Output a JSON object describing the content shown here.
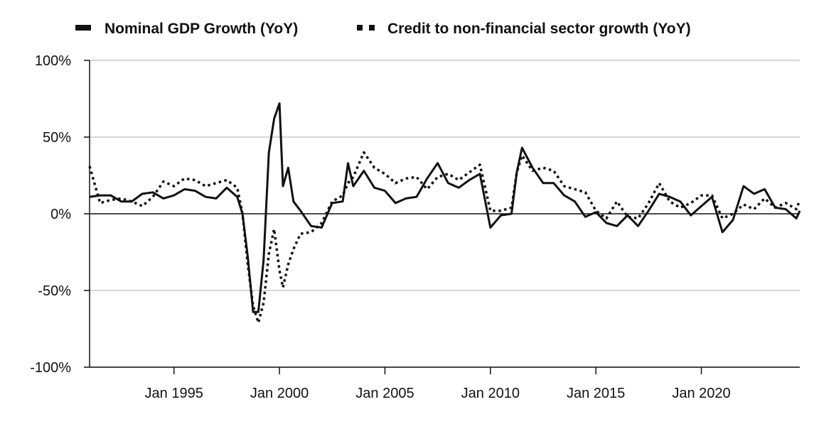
{
  "chart_data": {
    "type": "line",
    "title": "",
    "xlabel": "",
    "ylabel": "",
    "grid": true,
    "legend_position": "top",
    "x_range": [
      "1991-01",
      "2024-09"
    ],
    "ylim": [
      -100,
      100
    ],
    "y_ticks": [
      -100,
      -50,
      0,
      50,
      100
    ],
    "y_tick_labels": [
      "-100%",
      "-50%",
      "0%",
      "50%",
      "100%"
    ],
    "x_ticks": [
      "1995-01",
      "2000-01",
      "2005-01",
      "2010-01",
      "2015-01",
      "2020-01"
    ],
    "x_tick_labels": [
      "Jan 1995",
      "Jan 2000",
      "Jan 2005",
      "Jan 2010",
      "Jan 2015",
      "Jan 2020"
    ],
    "series": [
      {
        "name": "Nominal GDP Growth (YoY)",
        "style": "solid",
        "color": "#111111",
        "points": [
          [
            "1991-01",
            11
          ],
          [
            "1991-07",
            12
          ],
          [
            "1992-01",
            12
          ],
          [
            "1992-07",
            8
          ],
          [
            "1993-01",
            8
          ],
          [
            "1993-07",
            13
          ],
          [
            "1994-01",
            14
          ],
          [
            "1994-07",
            10
          ],
          [
            "1995-01",
            12
          ],
          [
            "1995-07",
            16
          ],
          [
            "1996-01",
            15
          ],
          [
            "1996-07",
            11
          ],
          [
            "1997-01",
            10
          ],
          [
            "1997-07",
            17
          ],
          [
            "1998-01",
            11
          ],
          [
            "1998-04",
            0
          ],
          [
            "1998-07",
            -28
          ],
          [
            "1998-10",
            -64
          ],
          [
            "1999-01",
            -64
          ],
          [
            "1999-04",
            -30
          ],
          [
            "1999-07",
            40
          ],
          [
            "1999-10",
            62
          ],
          [
            "2000-01",
            72
          ],
          [
            "2000-03",
            18
          ],
          [
            "2000-06",
            30
          ],
          [
            "2000-09",
            8
          ],
          [
            "2001-01",
            2
          ],
          [
            "2001-07",
            -8
          ],
          [
            "2002-01",
            -9
          ],
          [
            "2002-07",
            7
          ],
          [
            "2003-01",
            8
          ],
          [
            "2003-04",
            33
          ],
          [
            "2003-07",
            18
          ],
          [
            "2004-01",
            28
          ],
          [
            "2004-07",
            17
          ],
          [
            "2005-01",
            15
          ],
          [
            "2005-07",
            7
          ],
          [
            "2006-01",
            10
          ],
          [
            "2006-07",
            11
          ],
          [
            "2007-01",
            23
          ],
          [
            "2007-07",
            33
          ],
          [
            "2008-01",
            20
          ],
          [
            "2008-07",
            17
          ],
          [
            "2009-01",
            22
          ],
          [
            "2009-07",
            26
          ],
          [
            "2010-01",
            -9
          ],
          [
            "2010-07",
            -1
          ],
          [
            "2011-01",
            0
          ],
          [
            "2011-04",
            27
          ],
          [
            "2011-07",
            43
          ],
          [
            "2012-01",
            30
          ],
          [
            "2012-07",
            20
          ],
          [
            "2013-01",
            20
          ],
          [
            "2013-07",
            12
          ],
          [
            "2014-01",
            8
          ],
          [
            "2014-07",
            -2
          ],
          [
            "2015-01",
            1
          ],
          [
            "2015-07",
            -6
          ],
          [
            "2016-01",
            -8
          ],
          [
            "2016-07",
            -1
          ],
          [
            "2017-01",
            -8
          ],
          [
            "2017-07",
            2
          ],
          [
            "2018-01",
            13
          ],
          [
            "2018-07",
            11
          ],
          [
            "2019-01",
            8
          ],
          [
            "2019-07",
            -1
          ],
          [
            "2020-01",
            5
          ],
          [
            "2020-07",
            11
          ],
          [
            "2021-01",
            -12
          ],
          [
            "2021-07",
            -4
          ],
          [
            "2022-01",
            18
          ],
          [
            "2022-07",
            13
          ],
          [
            "2023-01",
            16
          ],
          [
            "2023-07",
            4
          ],
          [
            "2024-01",
            3
          ],
          [
            "2024-07",
            -3
          ],
          [
            "2024-09",
            2
          ]
        ]
      },
      {
        "name": "Credit to non-financial sector growth (YoY)",
        "style": "dotted",
        "color": "#111111",
        "points": [
          [
            "1991-01",
            31
          ],
          [
            "1991-07",
            7
          ],
          [
            "1992-01",
            9
          ],
          [
            "1992-07",
            10
          ],
          [
            "1993-01",
            8
          ],
          [
            "1993-07",
            5
          ],
          [
            "1994-01",
            11
          ],
          [
            "1994-07",
            21
          ],
          [
            "1995-01",
            18
          ],
          [
            "1995-07",
            23
          ],
          [
            "1996-01",
            22
          ],
          [
            "1996-07",
            18
          ],
          [
            "1997-01",
            20
          ],
          [
            "1997-07",
            22
          ],
          [
            "1998-01",
            17
          ],
          [
            "1998-04",
            0
          ],
          [
            "1998-07",
            -33
          ],
          [
            "1998-10",
            -60
          ],
          [
            "1999-01",
            -71
          ],
          [
            "1999-04",
            -58
          ],
          [
            "1999-07",
            -26
          ],
          [
            "1999-10",
            -10
          ],
          [
            "2000-01",
            -37
          ],
          [
            "2000-03",
            -48
          ],
          [
            "2000-06",
            -33
          ],
          [
            "2000-09",
            -23
          ],
          [
            "2001-01",
            -13
          ],
          [
            "2001-07",
            -12
          ],
          [
            "2002-01",
            -6
          ],
          [
            "2002-07",
            8
          ],
          [
            "2003-01",
            12
          ],
          [
            "2003-04",
            20
          ],
          [
            "2003-07",
            24
          ],
          [
            "2004-01",
            40
          ],
          [
            "2004-07",
            30
          ],
          [
            "2005-01",
            26
          ],
          [
            "2005-07",
            20
          ],
          [
            "2006-01",
            23
          ],
          [
            "2006-07",
            24
          ],
          [
            "2007-01",
            16
          ],
          [
            "2007-07",
            24
          ],
          [
            "2008-01",
            26
          ],
          [
            "2008-07",
            22
          ],
          [
            "2009-01",
            27
          ],
          [
            "2009-07",
            32
          ],
          [
            "2010-01",
            2
          ],
          [
            "2010-07",
            2
          ],
          [
            "2011-01",
            4
          ],
          [
            "2011-04",
            27
          ],
          [
            "2011-07",
            38
          ],
          [
            "2012-01",
            28
          ],
          [
            "2012-07",
            30
          ],
          [
            "2013-01",
            28
          ],
          [
            "2013-07",
            18
          ],
          [
            "2014-01",
            16
          ],
          [
            "2014-07",
            14
          ],
          [
            "2015-01",
            2
          ],
          [
            "2015-07",
            -3
          ],
          [
            "2016-01",
            8
          ],
          [
            "2016-07",
            -2
          ],
          [
            "2017-01",
            -3
          ],
          [
            "2017-07",
            7
          ],
          [
            "2018-01",
            20
          ],
          [
            "2018-07",
            8
          ],
          [
            "2019-01",
            4
          ],
          [
            "2019-07",
            7
          ],
          [
            "2020-01",
            12
          ],
          [
            "2020-07",
            12
          ],
          [
            "2021-01",
            -3
          ],
          [
            "2021-07",
            0
          ],
          [
            "2022-01",
            6
          ],
          [
            "2022-07",
            3
          ],
          [
            "2023-01",
            10
          ],
          [
            "2023-07",
            4
          ],
          [
            "2024-01",
            7
          ],
          [
            "2024-07",
            3
          ],
          [
            "2024-09",
            9
          ]
        ]
      }
    ]
  }
}
